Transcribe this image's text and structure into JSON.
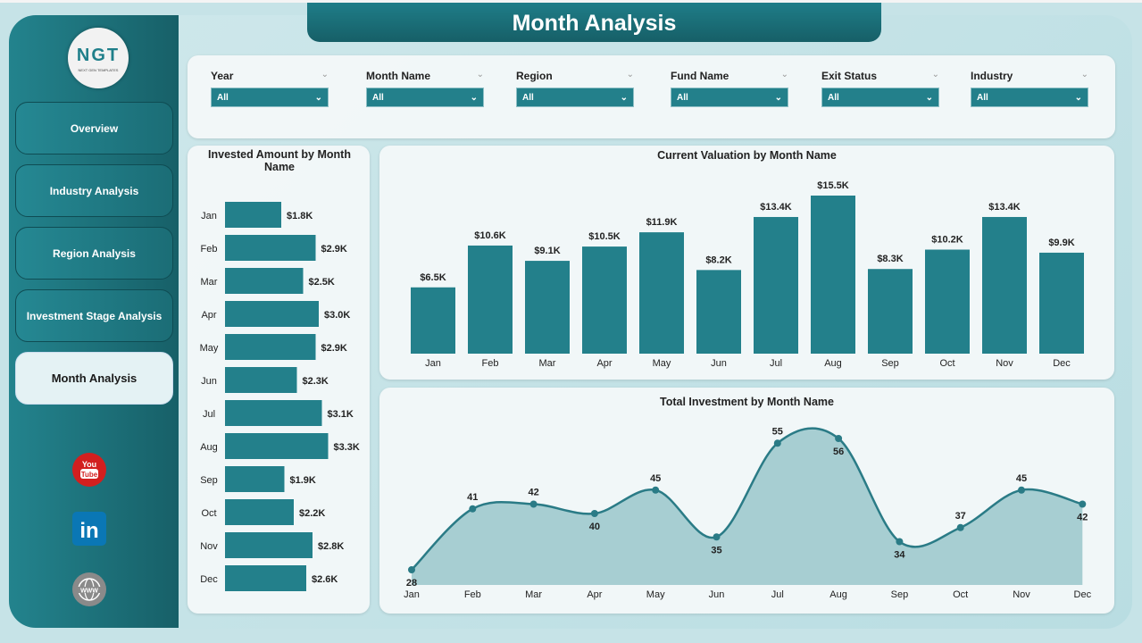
{
  "title": "Month Analysis",
  "logo": {
    "text": "NGT",
    "subtitle": "NEXT GEN TEMPLATES"
  },
  "nav": [
    {
      "label": "Overview"
    },
    {
      "label": "Industry Analysis"
    },
    {
      "label": "Region Analysis"
    },
    {
      "label": "Investment Stage Analysis"
    },
    {
      "label": "Month Analysis",
      "active": true
    }
  ],
  "social": [
    "youtube-icon",
    "linkedin-icon",
    "website-icon"
  ],
  "filters": [
    {
      "label": "Year",
      "value": "All"
    },
    {
      "label": "Month Name",
      "value": "All"
    },
    {
      "label": "Region",
      "value": "All"
    },
    {
      "label": "Fund Name",
      "value": "All"
    },
    {
      "label": "Exit Status",
      "value": "All"
    },
    {
      "label": "Industry",
      "value": "All"
    }
  ],
  "colors": {
    "bar": "#23808b",
    "line": "#2a7b86",
    "area": "#9fc9cd"
  },
  "chart_data": [
    {
      "type": "bar",
      "orientation": "horizontal",
      "title": "Invested Amount by Month Name",
      "categories": [
        "Jan",
        "Feb",
        "Mar",
        "Apr",
        "May",
        "Jun",
        "Jul",
        "Aug",
        "Sep",
        "Oct",
        "Nov",
        "Dec"
      ],
      "values": [
        1.8,
        2.9,
        2.5,
        3.0,
        2.9,
        2.3,
        3.1,
        3.3,
        1.9,
        2.2,
        2.8,
        2.6
      ],
      "labels": [
        "$1.8K",
        "$2.9K",
        "$2.5K",
        "$3.0K",
        "$2.9K",
        "$2.3K",
        "$3.1K",
        "$3.3K",
        "$1.9K",
        "$2.2K",
        "$2.8K",
        "$2.6K"
      ],
      "unit": "$K"
    },
    {
      "type": "bar",
      "title": "Current Valuation by Month Name",
      "categories": [
        "Jan",
        "Feb",
        "Mar",
        "Apr",
        "May",
        "Jun",
        "Jul",
        "Aug",
        "Sep",
        "Oct",
        "Nov",
        "Dec"
      ],
      "values": [
        6.5,
        10.6,
        9.1,
        10.5,
        11.9,
        8.2,
        13.4,
        15.5,
        8.3,
        10.2,
        13.4,
        9.9
      ],
      "labels": [
        "$6.5K",
        "$10.6K",
        "$9.1K",
        "$10.5K",
        "$11.9K",
        "$8.2K",
        "$13.4K",
        "$15.5K",
        "$8.3K",
        "$10.2K",
        "$13.4K",
        "$9.9K"
      ],
      "unit": "$K"
    },
    {
      "type": "area",
      "title": "Total Investment by Month Name",
      "categories": [
        "Jan",
        "Feb",
        "Mar",
        "Apr",
        "May",
        "Jun",
        "Jul",
        "Aug",
        "Sep",
        "Oct",
        "Nov",
        "Dec"
      ],
      "values": [
        28,
        41,
        42,
        40,
        45,
        35,
        55,
        56,
        34,
        37,
        45,
        42
      ]
    }
  ]
}
